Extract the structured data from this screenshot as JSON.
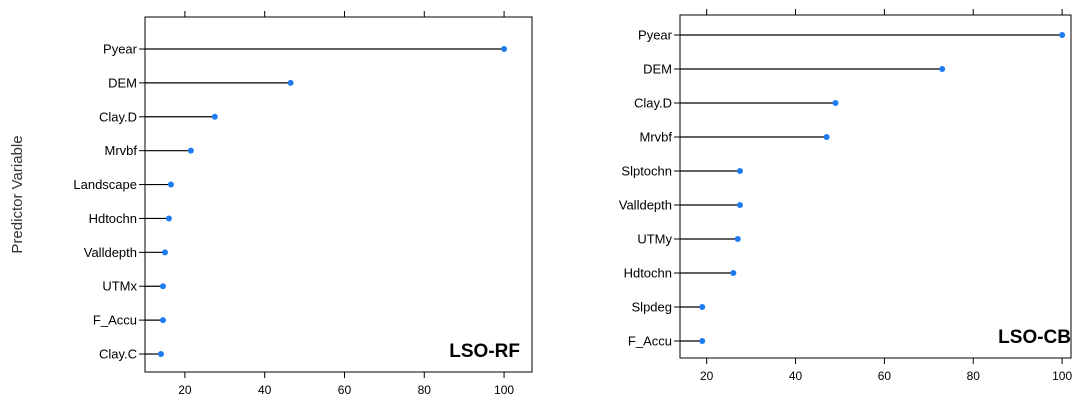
{
  "chart_data": [
    {
      "type": "lollipop",
      "label": "LSO-RF",
      "ylabel": "Predictor Variable",
      "xlim": [
        10,
        107
      ],
      "xticks": [
        20,
        40,
        60,
        80,
        100
      ],
      "top_ticks": [
        20,
        40,
        60,
        80,
        100
      ],
      "point_color": "#1e7cf0",
      "categories": [
        "Pyear",
        "DEM",
        "Clay.D",
        "Mrvbf",
        "Landscape",
        "Hdtochn",
        "Valldepth",
        "UTMx",
        "F_Accu",
        "Clay.C"
      ],
      "values": [
        100,
        46.5,
        27.5,
        21.5,
        16.5,
        16,
        15,
        14.5,
        14.5,
        14
      ]
    },
    {
      "type": "lollipop",
      "label": "LSO-CB",
      "ylabel": "",
      "xlim": [
        14,
        102
      ],
      "xticks": [
        20,
        40,
        60,
        80,
        100
      ],
      "top_ticks": [
        20,
        40,
        60,
        80,
        100
      ],
      "point_color": "#1e7cf0",
      "categories": [
        "Pyear",
        "DEM",
        "Clay.D",
        "Mrvbf",
        "Slptochn",
        "Valldepth",
        "UTMy",
        "Hdtochn",
        "Slpdeg",
        "F_Accu"
      ],
      "values": [
        100,
        73,
        49,
        47,
        27.5,
        27.5,
        27,
        26,
        19,
        19
      ]
    }
  ]
}
